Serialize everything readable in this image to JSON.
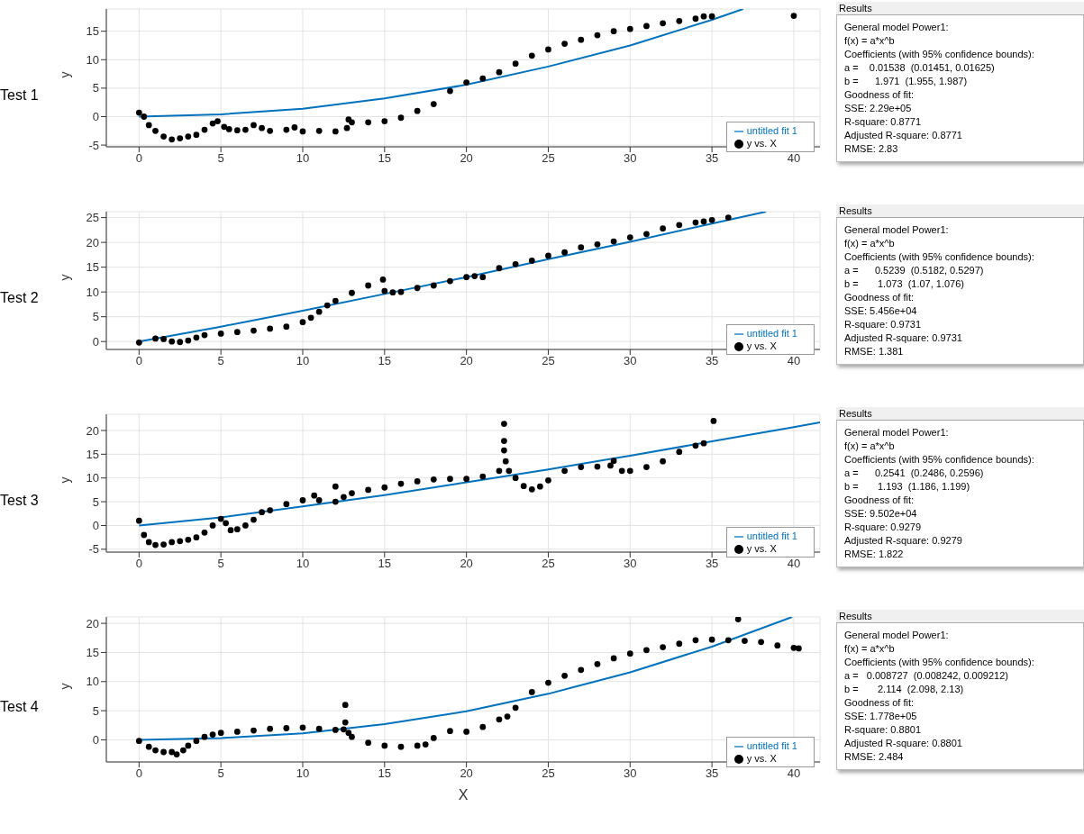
{
  "chart_data": [
    {
      "type": "scatter",
      "annotations": [
        "Test 1"
      ],
      "ylabel": "y",
      "xlim": [
        -2,
        41.6
      ],
      "ylim": [
        -5.3,
        18.9
      ],
      "xticks": [
        0,
        5,
        10,
        15,
        20,
        25,
        30,
        35,
        40
      ],
      "yticks": [
        -5,
        0,
        5,
        10,
        15
      ],
      "grid": true,
      "legend": "bottom right",
      "series": [
        {
          "name": "y vs. X",
          "type": "scatter",
          "marker": "circle",
          "color": "#000000",
          "x": [
            0,
            0.3,
            0.6,
            1,
            1.5,
            2,
            2.5,
            3,
            3.5,
            4,
            4.5,
            4.8,
            5.2,
            5.5,
            6,
            6.5,
            7,
            7.5,
            8,
            9,
            9.5,
            10,
            11,
            12,
            12.7,
            12.8,
            13,
            14,
            15,
            16,
            17,
            18,
            19,
            20,
            21,
            22,
            23,
            24,
            25,
            26,
            27,
            28,
            29,
            30,
            31,
            32,
            33,
            34,
            34.5,
            35,
            40
          ],
          "values": [
            0.7,
            0,
            -1.5,
            -2.5,
            -3.5,
            -4,
            -3.8,
            -3.5,
            -3.2,
            -2.3,
            -1.2,
            -0.8,
            -1.8,
            -2.2,
            -2.4,
            -2.3,
            -1.5,
            -2,
            -2.5,
            -2.3,
            -1.9,
            -2.6,
            -2.5,
            -2.6,
            -2,
            -0.5,
            -1,
            -1,
            -0.8,
            -0.2,
            1,
            2.2,
            4.5,
            6,
            6.7,
            7.8,
            9.3,
            10.7,
            11.8,
            12.8,
            13.5,
            14.3,
            15,
            15.4,
            15.9,
            16.4,
            16.8,
            17.2,
            17.6,
            17.6,
            17.7
          ]
        },
        {
          "name": "untitled fit 1",
          "type": "line",
          "marker": "none",
          "color": "#0072bd",
          "x": [
            0,
            5,
            10,
            15,
            20,
            25,
            30,
            35,
            36.9
          ],
          "values": [
            0,
            0.4,
            1.4,
            3.2,
            5.6,
            8.8,
            12.5,
            17,
            18.9
          ]
        }
      ]
    },
    {
      "type": "other",
      "title": "Results",
      "annotations": [
        "General model Power1:",
        "f(x) = a*x^b",
        "Coefficients (with 95% confidence bounds):",
        "a =    0.01538  (0.01451, 0.01625)",
        "b =      1.971  (1.955, 1.987)",
        "Goodness of fit:",
        "SSE: 2.29e+05",
        "R-square: 0.8771",
        "Adjusted R-square: 0.8771",
        "RMSE: 2.83"
      ]
    },
    {
      "type": "scatter",
      "annotations": [
        "Test 2"
      ],
      "ylabel": "y",
      "xlim": [
        -2,
        41.6
      ],
      "ylim": [
        -1.6,
        26.2
      ],
      "xticks": [
        0,
        5,
        10,
        15,
        20,
        25,
        30,
        35,
        40
      ],
      "yticks": [
        0,
        5,
        10,
        15,
        20,
        25
      ],
      "grid": true,
      "legend": "bottom right",
      "series": [
        {
          "name": "y vs. X",
          "type": "scatter",
          "marker": "circle",
          "color": "#000000",
          "x": [
            0,
            1,
            1.5,
            2,
            2.5,
            3,
            3.5,
            4,
            5,
            6,
            7,
            8,
            9,
            10,
            10.5,
            11,
            11.5,
            12,
            13,
            14,
            14.9,
            15,
            15.5,
            16,
            17,
            18,
            19,
            20,
            20.5,
            21,
            22,
            23,
            24,
            25,
            26,
            27,
            28,
            29,
            30,
            31,
            32,
            33,
            34,
            34.5,
            35,
            36
          ],
          "values": [
            -0.2,
            0.6,
            0.5,
            0,
            -0.1,
            0.2,
            0.8,
            1.3,
            1.6,
            1.9,
            2.2,
            2.6,
            3,
            3.9,
            4.8,
            6,
            7.3,
            8.2,
            9.8,
            11.3,
            12.5,
            10.2,
            9.9,
            10,
            10.8,
            11.3,
            12.2,
            13,
            13.2,
            13,
            14.8,
            15.6,
            16.3,
            17.3,
            18,
            19,
            19.6,
            20.2,
            21,
            21.7,
            22.8,
            23.5,
            24,
            24.2,
            24.5,
            25
          ]
        },
        {
          "name": "untitled fit 1",
          "type": "line",
          "marker": "none",
          "color": "#0072bd",
          "x": [
            0,
            5,
            10,
            15,
            20,
            25,
            30,
            35,
            38.3
          ],
          "values": [
            0,
            3,
            6.2,
            9.6,
            13,
            16.6,
            20.1,
            23.8,
            26.2
          ]
        }
      ]
    },
    {
      "type": "other",
      "title": "Results",
      "annotations": [
        "General model Power1:",
        "f(x) = a*x^b",
        "Coefficients (with 95% confidence bounds):",
        "a =      0.5239  (0.5182, 0.5297)",
        "b =       1.073  (1.07, 1.076)",
        "Goodness of fit:",
        "SSE: 5.456e+04",
        "R-square: 0.9731",
        "Adjusted R-square: 0.9731",
        "RMSE: 1.381"
      ]
    },
    {
      "type": "scatter",
      "annotations": [
        "Test 3"
      ],
      "ylabel": "y",
      "xlim": [
        -2,
        41.6
      ],
      "ylim": [
        -5.6,
        23.4
      ],
      "xticks": [
        0,
        5,
        10,
        15,
        20,
        25,
        30,
        35,
        40
      ],
      "yticks": [
        -5,
        0,
        5,
        10,
        15,
        20
      ],
      "grid": true,
      "legend": "bottom right",
      "series": [
        {
          "name": "y vs. X",
          "type": "scatter",
          "marker": "circle",
          "color": "#000000",
          "x": [
            0,
            0.3,
            0.6,
            1,
            1.5,
            2,
            2.5,
            3,
            3.5,
            4,
            4.5,
            5,
            5.3,
            5.6,
            6,
            6.5,
            7,
            7.5,
            8,
            9,
            10,
            10.7,
            11,
            12,
            12,
            12.5,
            13,
            14,
            15,
            16,
            17,
            18,
            19,
            20,
            21,
            22,
            22.3,
            22.3,
            22.3,
            22.4,
            22.6,
            23,
            23.5,
            24,
            24.5,
            25,
            26,
            27,
            28,
            28.8,
            29,
            29.5,
            30,
            31,
            32,
            33,
            34,
            34.5,
            35.1
          ],
          "values": [
            1,
            -2,
            -3.5,
            -4.1,
            -4,
            -3.5,
            -3.3,
            -3,
            -2.5,
            -1.5,
            0,
            1.4,
            0.5,
            -1,
            -0.8,
            0,
            1.2,
            2.8,
            3.2,
            4.5,
            5.3,
            6.3,
            5.3,
            5,
            8.2,
            6,
            6.8,
            7.5,
            8,
            8.8,
            9.3,
            9.7,
            9.8,
            9.8,
            10.3,
            11.5,
            21.4,
            17.8,
            15.8,
            13.5,
            11.5,
            10,
            8.3,
            7.6,
            8.2,
            9.5,
            11.5,
            12.3,
            12.4,
            12.6,
            13.6,
            11.5,
            11.5,
            12.3,
            13.5,
            15.5,
            16.8,
            17.3,
            22
          ]
        },
        {
          "name": "untitled fit 1",
          "type": "line",
          "marker": "none",
          "color": "#0072bd",
          "x": [
            0,
            5,
            10,
            15,
            20,
            25,
            30,
            35,
            40,
            41.6
          ],
          "values": [
            0,
            1.7,
            4,
            6.4,
            9.1,
            11.8,
            14.7,
            17.7,
            20.7,
            21.7
          ]
        }
      ]
    },
    {
      "type": "other",
      "title": "Results",
      "annotations": [
        "General model Power1:",
        "f(x) = a*x^b",
        "Coefficients (with 95% confidence bounds):",
        "a =      0.2541  (0.2486, 0.2596)",
        "b =       1.193  (1.186, 1.199)",
        "Goodness of fit:",
        "SSE: 9.502e+04",
        "R-square: 0.9279",
        "Adjusted R-square: 0.9279",
        "RMSE: 1.822"
      ]
    },
    {
      "type": "scatter",
      "annotations": [
        "Test 4"
      ],
      "xlabel": "X",
      "ylabel": "y",
      "xlim": [
        -2,
        41.6
      ],
      "ylim": [
        -3.8,
        21.1
      ],
      "xticks": [
        0,
        5,
        10,
        15,
        20,
        25,
        30,
        35,
        40
      ],
      "yticks": [
        0,
        5,
        10,
        15,
        20
      ],
      "grid": true,
      "legend": "bottom right",
      "series": [
        {
          "name": "y vs. X",
          "type": "scatter",
          "marker": "circle",
          "color": "#000000",
          "x": [
            0,
            0.6,
            1,
            1.5,
            2,
            2.3,
            2.7,
            3,
            3.5,
            4,
            4.5,
            5,
            6,
            7,
            8,
            9,
            10,
            11,
            12,
            12.5,
            12.6,
            12.6,
            12.8,
            13,
            14,
            15,
            16,
            17,
            17.5,
            18,
            19,
            20,
            21,
            22,
            22.5,
            23,
            24,
            25,
            26,
            27,
            28,
            29,
            30,
            31,
            32,
            33,
            34,
            35,
            36,
            36.6,
            37,
            38,
            39,
            40,
            40.3
          ],
          "values": [
            -0.2,
            -1.2,
            -1.8,
            -2.1,
            -2.1,
            -2.5,
            -1.8,
            -1,
            -0.2,
            0.5,
            0.9,
            1.2,
            1.4,
            1.6,
            1.9,
            2,
            2.1,
            1.9,
            1.7,
            1.8,
            6,
            3,
            1.2,
            0.5,
            -0.5,
            -1,
            -1.2,
            -1,
            -0.8,
            0.3,
            1.5,
            1.4,
            2.2,
            3.5,
            4,
            5.5,
            8.2,
            9.8,
            11,
            12,
            13,
            14,
            14.8,
            15.4,
            15.9,
            16.5,
            17.1,
            17.2,
            17.1,
            20.7,
            17,
            16.8,
            16.2,
            15.8,
            15.7
          ]
        },
        {
          "name": "untitled fit 1",
          "type": "line",
          "marker": "none",
          "color": "#0072bd",
          "x": [
            0,
            5,
            10,
            15,
            20,
            25,
            30,
            35,
            39.9
          ],
          "values": [
            0,
            0.3,
            1.1,
            2.7,
            4.9,
            7.9,
            11.6,
            16,
            21.1
          ]
        }
      ]
    },
    {
      "type": "other",
      "title": "Results",
      "annotations": [
        "General model Power1:",
        "f(x) = a*x^b",
        "Coefficients (with 95% confidence bounds):",
        "a =   0.008727  (0.008242, 0.009212)",
        "b =       2.114  (2.098, 2.13)",
        "Goodness of fit:",
        "SSE: 1.778e+05",
        "R-square: 0.8801",
        "Adjusted R-square: 0.8801",
        "RMSE: 2.484"
      ]
    }
  ]
}
